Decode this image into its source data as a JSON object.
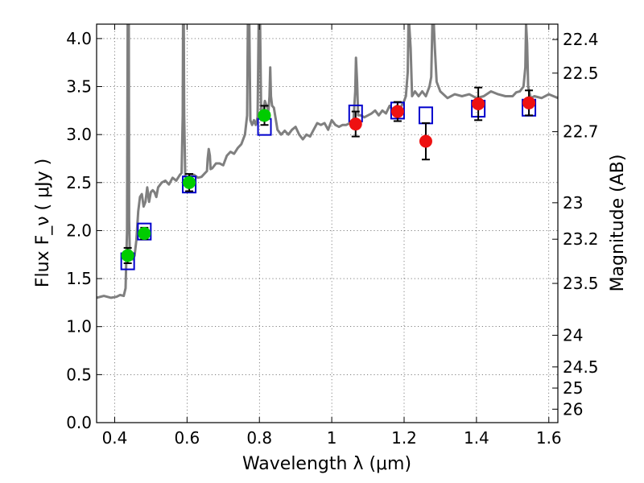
{
  "chart_data": {
    "type": "scatter",
    "xlabel": "Wavelength  λ (μm)",
    "ylabel": "Flux  F_ν  ( μJy )",
    "ylabel_right": "Magnitude (AB)",
    "xlim": [
      0.35,
      1.625
    ],
    "ylim": [
      0.0,
      4.15
    ],
    "grid": true,
    "x_ticks": [
      {
        "value": 0.4,
        "label": "0.4"
      },
      {
        "value": 0.6,
        "label": "0.6"
      },
      {
        "value": 0.8,
        "label": "0.8"
      },
      {
        "value": 1.0,
        "label": "1"
      },
      {
        "value": 1.2,
        "label": "1.2"
      },
      {
        "value": 1.4,
        "label": "1.4"
      },
      {
        "value": 1.6,
        "label": "1.6"
      }
    ],
    "y_ticks": [
      {
        "value": 0.0,
        "label": "0.0"
      },
      {
        "value": 0.5,
        "label": "0.5"
      },
      {
        "value": 1.0,
        "label": "1.0"
      },
      {
        "value": 1.5,
        "label": "1.5"
      },
      {
        "value": 2.0,
        "label": "2.0"
      },
      {
        "value": 2.5,
        "label": "2.5"
      },
      {
        "value": 3.0,
        "label": "3.0"
      },
      {
        "value": 3.5,
        "label": "3.5"
      },
      {
        "value": 4.0,
        "label": "4.0"
      }
    ],
    "right_ticks": [
      {
        "flux": 3.99,
        "label": "22.4"
      },
      {
        "flux": 3.64,
        "label": "22.5"
      },
      {
        "flux": 3.03,
        "label": "22.7"
      },
      {
        "flux": 2.29,
        "label": "23"
      },
      {
        "flux": 1.91,
        "label": "23.2"
      },
      {
        "flux": 1.45,
        "label": "23.5"
      },
      {
        "flux": 0.91,
        "label": "24"
      },
      {
        "flux": 0.58,
        "label": "24.5"
      },
      {
        "flux": 0.36,
        "label": "25"
      },
      {
        "flux": 0.14,
        "label": "26"
      }
    ],
    "series": [
      {
        "role": "spectrum",
        "color": "#7f7f7f",
        "x": [
          0.35,
          0.37,
          0.39,
          0.405,
          0.415,
          0.425,
          0.43,
          0.434,
          0.436,
          0.437,
          0.438,
          0.439,
          0.44,
          0.442,
          0.445,
          0.45,
          0.455,
          0.46,
          0.465,
          0.47,
          0.475,
          0.48,
          0.485,
          0.49,
          0.495,
          0.5,
          0.505,
          0.51,
          0.515,
          0.52,
          0.53,
          0.54,
          0.55,
          0.56,
          0.57,
          0.58,
          0.585,
          0.588,
          0.589,
          0.59,
          0.591,
          0.592,
          0.595,
          0.6,
          0.61,
          0.62,
          0.63,
          0.64,
          0.65,
          0.655,
          0.657,
          0.66,
          0.663,
          0.665,
          0.67,
          0.68,
          0.69,
          0.7,
          0.71,
          0.72,
          0.73,
          0.74,
          0.75,
          0.76,
          0.766,
          0.768,
          0.77,
          0.772,
          0.775,
          0.78,
          0.785,
          0.79,
          0.795,
          0.798,
          0.8,
          0.802,
          0.805,
          0.81,
          0.815,
          0.82,
          0.825,
          0.828,
          0.83,
          0.832,
          0.835,
          0.84,
          0.85,
          0.86,
          0.87,
          0.88,
          0.89,
          0.9,
          0.91,
          0.92,
          0.93,
          0.94,
          0.95,
          0.96,
          0.97,
          0.98,
          0.99,
          1.0,
          1.01,
          1.02,
          1.03,
          1.04,
          1.05,
          1.06,
          1.065,
          1.067,
          1.07,
          1.073,
          1.08,
          1.09,
          1.1,
          1.11,
          1.12,
          1.13,
          1.14,
          1.15,
          1.16,
          1.17,
          1.18,
          1.19,
          1.2,
          1.205,
          1.21,
          1.212,
          1.214,
          1.218,
          1.222,
          1.23,
          1.24,
          1.25,
          1.26,
          1.27,
          1.275,
          1.278,
          1.28,
          1.282,
          1.285,
          1.29,
          1.3,
          1.32,
          1.34,
          1.36,
          1.38,
          1.4,
          1.42,
          1.44,
          1.46,
          1.48,
          1.5,
          1.51,
          1.52,
          1.53,
          1.535,
          1.537,
          1.54,
          1.543,
          1.55,
          1.56,
          1.58,
          1.6,
          1.625
        ],
        "y": [
          1.3,
          1.32,
          1.3,
          1.31,
          1.33,
          1.32,
          1.4,
          2.0,
          4.15,
          4.15,
          4.15,
          4.15,
          2.1,
          1.75,
          1.72,
          1.7,
          1.74,
          1.9,
          2.2,
          2.35,
          2.38,
          2.25,
          2.3,
          2.45,
          2.3,
          2.4,
          2.42,
          2.4,
          2.35,
          2.45,
          2.5,
          2.52,
          2.48,
          2.55,
          2.52,
          2.58,
          2.6,
          3.2,
          4.15,
          4.15,
          4.15,
          3.2,
          2.56,
          2.55,
          2.58,
          2.58,
          2.55,
          2.56,
          2.6,
          2.62,
          2.75,
          2.85,
          2.78,
          2.64,
          2.65,
          2.7,
          2.7,
          2.68,
          2.78,
          2.82,
          2.8,
          2.86,
          2.9,
          3.0,
          3.2,
          4.15,
          4.15,
          4.15,
          3.15,
          3.1,
          3.15,
          3.1,
          3.18,
          4.15,
          4.15,
          4.15,
          3.15,
          3.2,
          3.35,
          3.3,
          3.25,
          3.4,
          3.7,
          3.4,
          3.3,
          3.28,
          3.05,
          3.0,
          3.04,
          3.0,
          3.05,
          3.08,
          3.0,
          2.95,
          3.0,
          2.98,
          3.05,
          3.12,
          3.1,
          3.12,
          3.05,
          3.15,
          3.1,
          3.08,
          3.1,
          3.1,
          3.12,
          3.15,
          3.45,
          3.8,
          3.55,
          3.2,
          3.2,
          3.18,
          3.2,
          3.22,
          3.25,
          3.2,
          3.25,
          3.22,
          3.3,
          3.25,
          3.3,
          3.28,
          3.35,
          3.4,
          3.65,
          4.15,
          4.15,
          3.9,
          3.4,
          3.45,
          3.4,
          3.45,
          3.4,
          3.5,
          3.6,
          4.15,
          4.15,
          4.15,
          3.9,
          3.55,
          3.45,
          3.38,
          3.42,
          3.4,
          3.42,
          3.38,
          3.4,
          3.45,
          3.42,
          3.4,
          3.4,
          3.44,
          3.45,
          3.5,
          3.7,
          4.15,
          3.95,
          3.5,
          3.38,
          3.4,
          3.38,
          3.42,
          3.38
        ]
      },
      {
        "role": "model-photometry",
        "color": "#0000cc",
        "x": [
          0.436,
          0.482,
          0.606,
          0.814,
          1.066,
          1.182,
          1.26,
          1.405,
          1.545
        ],
        "y": [
          1.68,
          1.99,
          2.48,
          3.08,
          3.22,
          3.25,
          3.2,
          3.27,
          3.28
        ]
      },
      {
        "role": "observed-optical",
        "color": "#00cc00",
        "x": [
          0.436,
          0.482,
          0.606,
          0.814
        ],
        "y": [
          1.74,
          1.97,
          2.5,
          3.2
        ],
        "err": [
          0.08,
          0.06,
          0.09,
          0.1
        ]
      },
      {
        "role": "observed-nir",
        "color": "#ee1111",
        "x": [
          1.066,
          1.182,
          1.26,
          1.405,
          1.545
        ],
        "y": [
          3.11,
          3.24,
          2.93,
          3.32,
          3.33
        ],
        "err": [
          0.13,
          0.1,
          0.19,
          0.17,
          0.13
        ]
      }
    ]
  }
}
